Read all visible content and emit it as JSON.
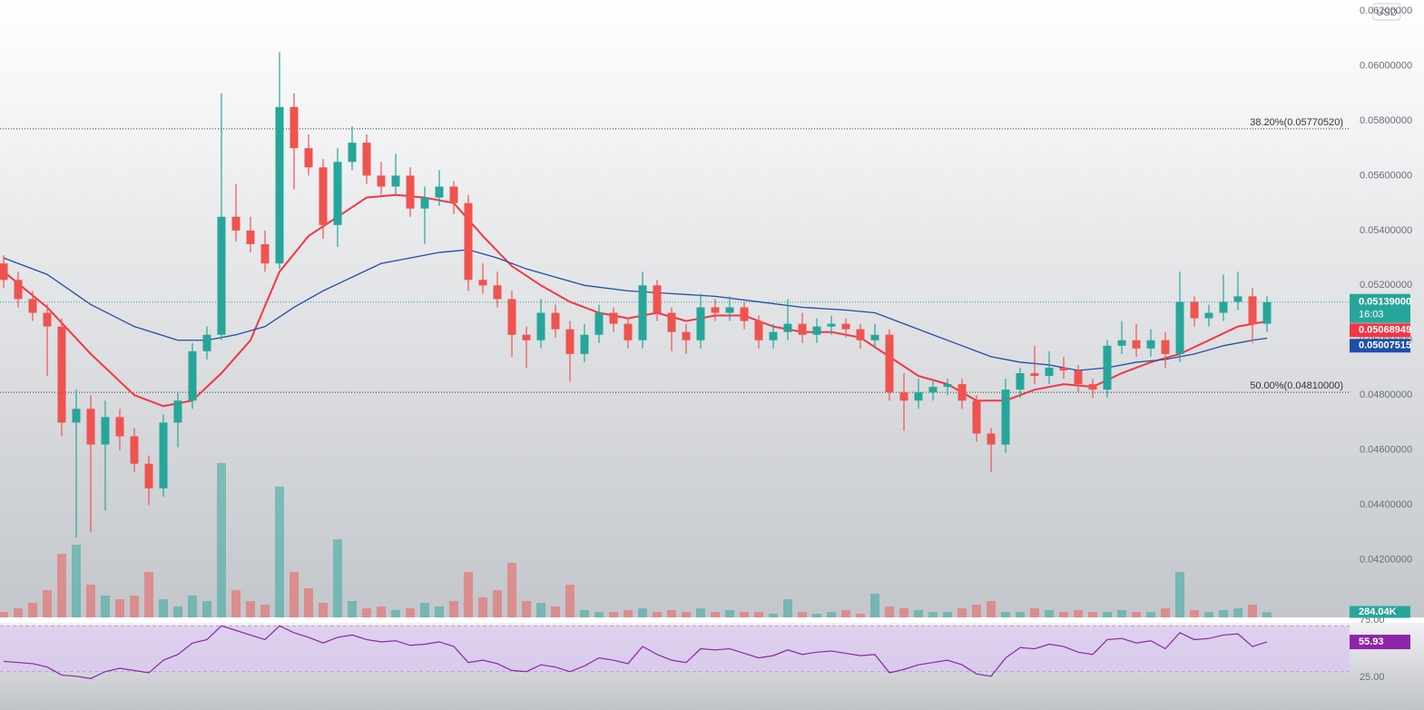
{
  "chart_data": {
    "type": "candlestick",
    "currency": "USD",
    "up_color": "#26a69a",
    "down_color": "#ef5350",
    "ylim": [
      0.0399,
      0.0624
    ],
    "yticks": [
      {
        "value": 0.042,
        "label": "0.04200000"
      },
      {
        "value": 0.044,
        "label": "0.04400000"
      },
      {
        "value": 0.046,
        "label": "0.04600000"
      },
      {
        "value": 0.048,
        "label": "0.04800000"
      },
      {
        "value": 0.05,
        "label": "0.05000000"
      },
      {
        "value": 0.052,
        "label": "0.05200000"
      },
      {
        "value": 0.054,
        "label": "0.05400000"
      },
      {
        "value": 0.056,
        "label": "0.05600000"
      },
      {
        "value": 0.058,
        "label": "0.05800000"
      },
      {
        "value": 0.06,
        "label": "0.06000000"
      },
      {
        "value": 0.062,
        "label": "0.06200000"
      }
    ],
    "grid": false,
    "open": [
      0.0528,
      0.0522,
      0.0515,
      0.051,
      0.0505,
      0.047,
      0.0475,
      0.0462,
      0.0472,
      0.0465,
      0.0455,
      0.0446,
      0.047,
      0.0478,
      0.0496,
      0.0502,
      0.0545,
      0.054,
      0.0535,
      0.0528,
      0.0585,
      0.057,
      0.0563,
      0.0542,
      0.0565,
      0.0572,
      0.056,
      0.0556,
      0.056,
      0.0548,
      0.0552,
      0.0556,
      0.055,
      0.0522,
      0.052,
      0.0515,
      0.0502,
      0.05,
      0.051,
      0.0504,
      0.0495,
      0.0502,
      0.051,
      0.0506,
      0.05,
      0.052,
      0.051,
      0.0503,
      0.05,
      0.0512,
      0.051,
      0.0512,
      0.0507,
      0.05,
      0.0503,
      0.0506,
      0.0502,
      0.0505,
      0.0506,
      0.0504,
      0.05,
      0.0502,
      0.0481,
      0.0478,
      0.0481,
      0.0483,
      0.0484,
      0.0478,
      0.0466,
      0.0462,
      0.0482,
      0.0488,
      0.0487,
      0.049,
      0.0489,
      0.0484,
      0.0482,
      0.0498,
      0.05,
      0.0497,
      0.05,
      0.0495,
      0.0514,
      0.0508,
      0.051,
      0.0514,
      0.0516,
      0.0506
    ],
    "high": [
      0.0531,
      0.0525,
      0.0518,
      0.0513,
      0.0508,
      0.0482,
      0.048,
      0.0478,
      0.0475,
      0.0468,
      0.0458,
      0.0473,
      0.0481,
      0.0499,
      0.0505,
      0.059,
      0.0557,
      0.0545,
      0.054,
      0.0605,
      0.059,
      0.0575,
      0.0566,
      0.057,
      0.0578,
      0.0575,
      0.0565,
      0.0568,
      0.0563,
      0.0556,
      0.0562,
      0.0558,
      0.0553,
      0.0528,
      0.0525,
      0.0518,
      0.0505,
      0.0515,
      0.0513,
      0.0507,
      0.0506,
      0.0513,
      0.0512,
      0.0508,
      0.0525,
      0.0522,
      0.0512,
      0.0506,
      0.0517,
      0.0515,
      0.0516,
      0.0514,
      0.0509,
      0.0506,
      0.0515,
      0.051,
      0.0508,
      0.0509,
      0.0508,
      0.0506,
      0.0506,
      0.0504,
      0.0488,
      0.0486,
      0.0485,
      0.0486,
      0.0486,
      0.048,
      0.0468,
      0.0486,
      0.049,
      0.0498,
      0.0496,
      0.0494,
      0.0491,
      0.0486,
      0.05,
      0.0507,
      0.0506,
      0.0504,
      0.0503,
      0.0525,
      0.0516,
      0.0513,
      0.0524,
      0.0525,
      0.0519,
      0.0516
    ],
    "low": [
      0.0519,
      0.0512,
      0.0507,
      0.0487,
      0.0465,
      0.0428,
      0.043,
      0.0438,
      0.046,
      0.0452,
      0.044,
      0.0443,
      0.0461,
      0.0475,
      0.0493,
      0.05,
      0.0536,
      0.0532,
      0.0525,
      0.0526,
      0.0555,
      0.056,
      0.0537,
      0.0534,
      0.0562,
      0.0557,
      0.0553,
      0.0553,
      0.0545,
      0.0535,
      0.0549,
      0.0546,
      0.0518,
      0.0517,
      0.0512,
      0.0494,
      0.049,
      0.0497,
      0.0501,
      0.0485,
      0.0492,
      0.0499,
      0.0503,
      0.0497,
      0.0497,
      0.0507,
      0.0496,
      0.0495,
      0.0497,
      0.0507,
      0.0507,
      0.0504,
      0.0497,
      0.0497,
      0.05,
      0.0499,
      0.0499,
      0.0502,
      0.0501,
      0.0497,
      0.0497,
      0.0478,
      0.0467,
      0.0475,
      0.0478,
      0.048,
      0.0475,
      0.0463,
      0.0452,
      0.0459,
      0.0479,
      0.0484,
      0.0484,
      0.0486,
      0.0481,
      0.0479,
      0.0479,
      0.0495,
      0.0494,
      0.0494,
      0.049,
      0.0492,
      0.0505,
      0.0505,
      0.0507,
      0.0511,
      0.0499,
      0.0503
    ],
    "close": [
      0.0522,
      0.0515,
      0.051,
      0.0505,
      0.047,
      0.0475,
      0.0462,
      0.0472,
      0.0465,
      0.0455,
      0.0446,
      0.047,
      0.0478,
      0.0496,
      0.0502,
      0.0545,
      0.054,
      0.0535,
      0.0528,
      0.0585,
      0.057,
      0.0563,
      0.0542,
      0.0565,
      0.0572,
      0.056,
      0.0556,
      0.056,
      0.0548,
      0.0552,
      0.0556,
      0.055,
      0.0522,
      0.052,
      0.0515,
      0.0502,
      0.05,
      0.051,
      0.0504,
      0.0495,
      0.0502,
      0.051,
      0.0506,
      0.05,
      0.052,
      0.051,
      0.0503,
      0.05,
      0.0512,
      0.051,
      0.0512,
      0.0507,
      0.05,
      0.0503,
      0.0506,
      0.0502,
      0.0505,
      0.0506,
      0.0504,
      0.05,
      0.0502,
      0.0481,
      0.0478,
      0.0481,
      0.0483,
      0.0484,
      0.0478,
      0.0466,
      0.0462,
      0.0482,
      0.0488,
      0.0487,
      0.049,
      0.0489,
      0.0484,
      0.0482,
      0.0498,
      0.05,
      0.0497,
      0.05,
      0.0495,
      0.0514,
      0.0508,
      0.051,
      0.0514,
      0.0516,
      0.0506,
      0.05139
    ],
    "last_label": "0.05139000",
    "countdown": "16:03",
    "ma": [
      {
        "color": "#f23645",
        "x": [
          0,
          3,
          6,
          9,
          11,
          13,
          15,
          17,
          19,
          21,
          23,
          25,
          27,
          29,
          31,
          33,
          35,
          37,
          39,
          41,
          43,
          45,
          47,
          49,
          51,
          53,
          55,
          57,
          59,
          61,
          63,
          65,
          67,
          69,
          71,
          73,
          75,
          77,
          79,
          81,
          83,
          85,
          87
        ],
        "values": [
          0.0525,
          0.0512,
          0.0495,
          0.048,
          0.0476,
          0.0478,
          0.0488,
          0.05,
          0.0525,
          0.0538,
          0.0545,
          0.0552,
          0.0553,
          0.0552,
          0.055,
          0.0538,
          0.0527,
          0.052,
          0.0514,
          0.051,
          0.0508,
          0.051,
          0.0507,
          0.0509,
          0.0509,
          0.0505,
          0.0503,
          0.0503,
          0.0501,
          0.0494,
          0.0487,
          0.0484,
          0.0478,
          0.0478,
          0.0482,
          0.0484,
          0.0483,
          0.0488,
          0.0492,
          0.0495,
          0.05,
          0.0505,
          0.05068949
        ],
        "last_label": "0.05068949"
      },
      {
        "color": "#1e4fa8",
        "x": [
          0,
          3,
          6,
          9,
          12,
          14,
          16,
          18,
          20,
          22,
          24,
          26,
          28,
          30,
          32,
          34,
          36,
          38,
          40,
          43,
          46,
          49,
          52,
          55,
          58,
          60,
          62,
          64,
          66,
          68,
          70,
          72,
          74,
          76,
          78,
          80,
          82,
          84,
          86,
          87
        ],
        "values": [
          0.053,
          0.0524,
          0.0513,
          0.0505,
          0.05,
          0.05,
          0.0502,
          0.0505,
          0.0512,
          0.0518,
          0.0523,
          0.0528,
          0.053,
          0.0532,
          0.0533,
          0.053,
          0.0526,
          0.0523,
          0.052,
          0.0518,
          0.0517,
          0.0516,
          0.0514,
          0.0512,
          0.0511,
          0.051,
          0.0506,
          0.0502,
          0.0498,
          0.0494,
          0.0492,
          0.0491,
          0.0489,
          0.049,
          0.0492,
          0.0493,
          0.0495,
          0.0498,
          0.05,
          0.05007515
        ],
        "last_label": "0.05007515"
      }
    ],
    "levels": [
      {
        "value": 0.0577052,
        "label": "38.20%(0.05770520)"
      },
      {
        "value": 0.0481,
        "label": "50.00%(0.04810000)"
      }
    ],
    "volume": {
      "ylim": [
        0,
        9000
      ],
      "values": [
        300,
        500,
        800,
        1500,
        3500,
        4000,
        1800,
        1200,
        1000,
        1200,
        2500,
        1000,
        600,
        1200,
        900,
        8500,
        1500,
        900,
        700,
        7200,
        2500,
        1600,
        800,
        4300,
        900,
        500,
        600,
        400,
        500,
        800,
        600,
        900,
        2500,
        1100,
        1500,
        3000,
        900,
        800,
        600,
        1800,
        400,
        300,
        300,
        400,
        500,
        300,
        400,
        300,
        500,
        300,
        400,
        300,
        300,
        200,
        1000,
        300,
        200,
        300,
        400,
        200,
        1300,
        600,
        500,
        400,
        300,
        300,
        500,
        700,
        900,
        300,
        300,
        500,
        400,
        300,
        400,
        300,
        300,
        400,
        300,
        300,
        500,
        2500,
        400,
        300,
        400,
        500,
        700,
        284.04
      ],
      "last_label": "284.04K"
    },
    "rsi": {
      "color": "#8e24aa",
      "ylim": [
        -3.5,
        77.4
      ],
      "band": [
        30,
        70
      ],
      "yticks": [
        {
          "value": 25,
          "label": "25.00"
        },
        {
          "value": 75,
          "label": "75.00"
        }
      ],
      "values": [
        39,
        38,
        37,
        34,
        27,
        26,
        24,
        30,
        33,
        31,
        29,
        40,
        45,
        55,
        58,
        70,
        66,
        62,
        58,
        70,
        64,
        60,
        55,
        60,
        62,
        58,
        56,
        57,
        53,
        54,
        56,
        52,
        38,
        40,
        37,
        31,
        30,
        36,
        34,
        30,
        35,
        42,
        40,
        37,
        52,
        45,
        40,
        38,
        50,
        49,
        50,
        46,
        42,
        44,
        49,
        45,
        47,
        48,
        46,
        44,
        45,
        29,
        32,
        36,
        38,
        40,
        36,
        28,
        26,
        42,
        51,
        50,
        54,
        52,
        47,
        45,
        58,
        59,
        55,
        57,
        50,
        64,
        58,
        59,
        62,
        63,
        52,
        55.93
      ]
    }
  }
}
